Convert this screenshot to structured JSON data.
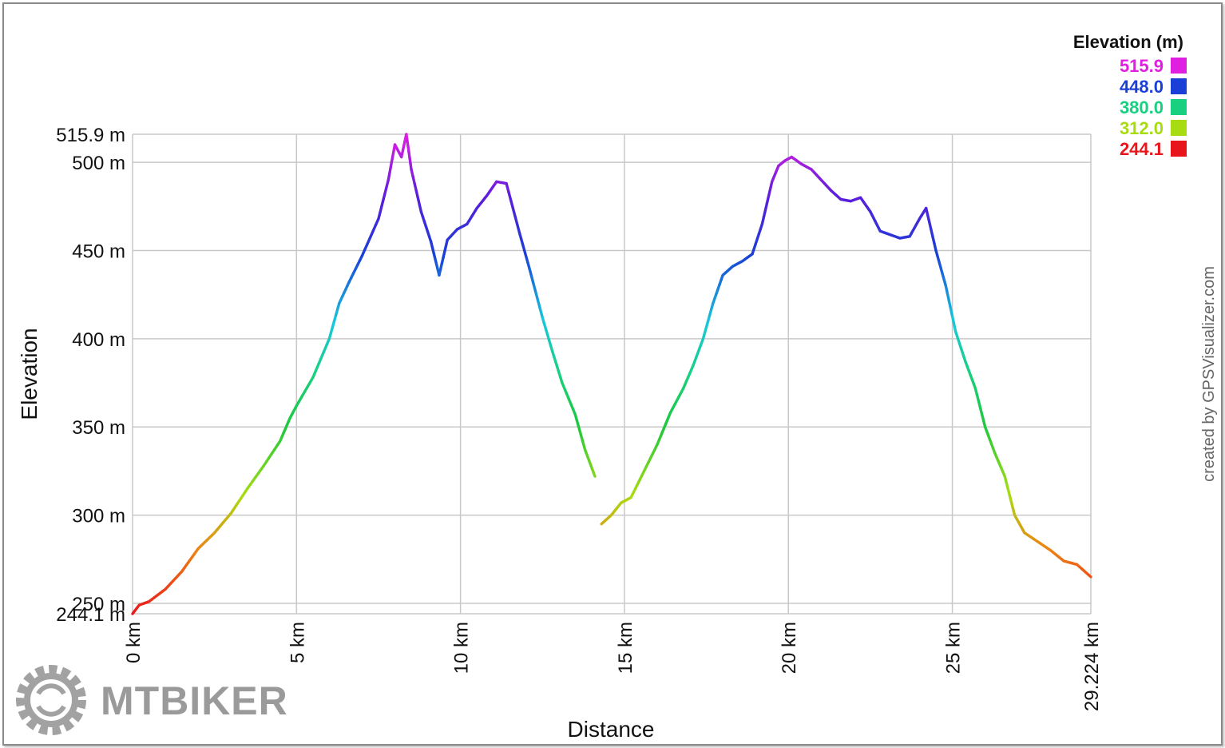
{
  "chart_data": {
    "type": "line",
    "xlabel": "Distance",
    "ylabel": "Elevation",
    "x_unit": "km",
    "y_unit": "m",
    "xlim": [
      0,
      29.224
    ],
    "ylim": [
      244.1,
      515.9
    ],
    "x_ticks": [
      {
        "value": 0,
        "label": "0 km"
      },
      {
        "value": 5,
        "label": "5 km"
      },
      {
        "value": 10,
        "label": "10 km"
      },
      {
        "value": 15,
        "label": "15 km"
      },
      {
        "value": 20,
        "label": "20 km"
      },
      {
        "value": 25,
        "label": "25 km"
      },
      {
        "value": 29.224,
        "label": "29.224 km"
      }
    ],
    "y_ticks": [
      {
        "value": 244.1,
        "label": "244.1 m"
      },
      {
        "value": 250,
        "label": "250 m"
      },
      {
        "value": 300,
        "label": "300 m"
      },
      {
        "value": 350,
        "label": "350 m"
      },
      {
        "value": 400,
        "label": "400 m"
      },
      {
        "value": 450,
        "label": "450 m"
      },
      {
        "value": 500,
        "label": "500 m"
      },
      {
        "value": 515.9,
        "label": "515.9 m"
      }
    ],
    "grid": true,
    "series": [
      {
        "points": [
          [
            0,
            244.1
          ],
          [
            0.2,
            249
          ],
          [
            0.5,
            251
          ],
          [
            1.0,
            258
          ],
          [
            1.5,
            268
          ],
          [
            2.0,
            281
          ],
          [
            2.5,
            290
          ],
          [
            3.0,
            301
          ],
          [
            3.5,
            315
          ],
          [
            4.0,
            328
          ],
          [
            4.5,
            342
          ],
          [
            4.8,
            355
          ],
          [
            5.0,
            362
          ],
          [
            5.5,
            378
          ],
          [
            6.0,
            400
          ],
          [
            6.3,
            420
          ],
          [
            6.6,
            432
          ],
          [
            7.0,
            447
          ],
          [
            7.5,
            468
          ],
          [
            7.8,
            490
          ],
          [
            8.0,
            510
          ],
          [
            8.2,
            503
          ],
          [
            8.35,
            515.9
          ],
          [
            8.5,
            496
          ],
          [
            8.8,
            472
          ],
          [
            9.1,
            455
          ],
          [
            9.35,
            436
          ],
          [
            9.6,
            456
          ],
          [
            9.9,
            462
          ],
          [
            10.2,
            465
          ],
          [
            10.5,
            474
          ],
          [
            10.8,
            481
          ],
          [
            11.1,
            489
          ],
          [
            11.4,
            488
          ],
          [
            11.8,
            460
          ],
          [
            12.1,
            440
          ],
          [
            12.5,
            412
          ],
          [
            12.8,
            393
          ],
          [
            13.1,
            375
          ],
          [
            13.5,
            357
          ],
          [
            13.8,
            337
          ],
          [
            14.1,
            322
          ]
        ],
        "color_by": "elevation"
      },
      {
        "points": [
          [
            14.3,
            295
          ],
          [
            14.6,
            300
          ],
          [
            14.9,
            307
          ],
          [
            15.2,
            310
          ],
          [
            15.6,
            325
          ],
          [
            16.0,
            340
          ],
          [
            16.4,
            358
          ],
          [
            16.8,
            372
          ],
          [
            17.1,
            385
          ],
          [
            17.4,
            400
          ],
          [
            17.7,
            420
          ],
          [
            18.0,
            436
          ],
          [
            18.3,
            441
          ],
          [
            18.6,
            444
          ],
          [
            18.9,
            448
          ],
          [
            19.2,
            465
          ],
          [
            19.5,
            489
          ],
          [
            19.7,
            498
          ],
          [
            19.9,
            501
          ],
          [
            20.1,
            503
          ],
          [
            20.4,
            499
          ],
          [
            20.7,
            496
          ],
          [
            21.0,
            490
          ],
          [
            21.3,
            484
          ],
          [
            21.6,
            479
          ],
          [
            21.9,
            478
          ],
          [
            22.2,
            480
          ],
          [
            22.5,
            472
          ],
          [
            22.8,
            461
          ],
          [
            23.1,
            459
          ],
          [
            23.4,
            457
          ],
          [
            23.7,
            458
          ],
          [
            24.0,
            468
          ],
          [
            24.2,
            474
          ],
          [
            24.5,
            450
          ],
          [
            24.8,
            430
          ],
          [
            25.1,
            404
          ],
          [
            25.4,
            387
          ],
          [
            25.7,
            372
          ],
          [
            26.0,
            350
          ],
          [
            26.3,
            335
          ],
          [
            26.6,
            322
          ],
          [
            26.9,
            300
          ],
          [
            27.2,
            290
          ],
          [
            27.6,
            285
          ],
          [
            28.0,
            280
          ],
          [
            28.4,
            274
          ],
          [
            28.8,
            272
          ],
          [
            29.224,
            265
          ]
        ],
        "color_by": "elevation"
      }
    ],
    "legend": {
      "title": "Elevation (m)",
      "placement": "top-right",
      "entries": [
        {
          "label": "515.9",
          "color": "#e020e0"
        },
        {
          "label": "448.0",
          "color": "#1a3fd6"
        },
        {
          "label": "380.0",
          "color": "#18d080"
        },
        {
          "label": "312.0",
          "color": "#a8dc12"
        },
        {
          "label": "244.1",
          "color": "#e8161c"
        }
      ]
    }
  },
  "credit_text": "created by GPSVisualizer.com",
  "watermark": {
    "brand": "MTBIKER",
    "icon": "gear-logo-icon"
  }
}
